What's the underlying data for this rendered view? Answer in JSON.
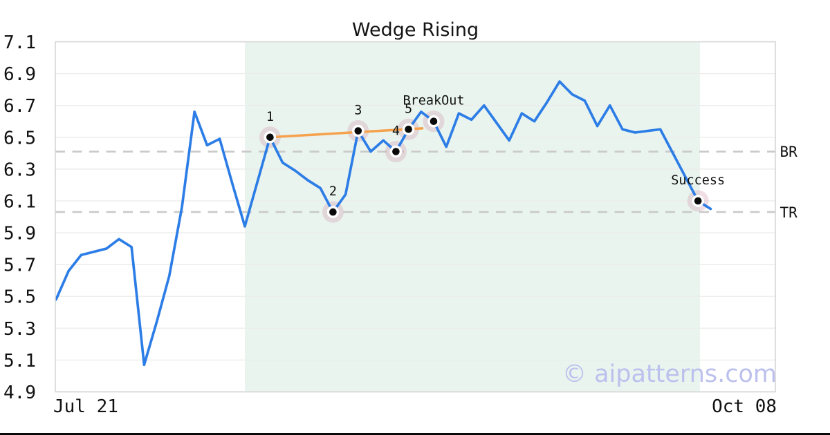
{
  "title": "Wedge Rising",
  "watermark": "© aipatterns.com",
  "chart_data": {
    "type": "line",
    "title": "Wedge Rising",
    "x_ticks": [
      "Jul 21",
      "Oct 08"
    ],
    "y_ticks": [
      "7.1",
      "6.9",
      "6.7",
      "6.5",
      "6.3",
      "6.1",
      "5.9",
      "5.7",
      "5.5",
      "5.3",
      "5.1",
      "4.9"
    ],
    "ylim": [
      4.9,
      7.1
    ],
    "grid": "horizontal",
    "legend": "none",
    "series": [
      {
        "name": "price",
        "values": [
          5.48,
          5.66,
          5.76,
          5.78,
          5.8,
          5.86,
          5.81,
          5.07,
          5.34,
          5.63,
          6.06,
          6.66,
          6.45,
          6.49,
          6.21,
          5.94,
          6.22,
          6.5,
          6.34,
          6.29,
          6.23,
          6.18,
          6.03,
          6.14,
          6.54,
          6.41,
          6.48,
          6.41,
          6.55,
          6.66,
          6.6,
          6.44,
          6.65,
          6.61,
          6.7,
          6.59,
          6.48,
          6.65,
          6.6,
          6.72,
          6.85,
          6.77,
          6.73,
          6.57,
          6.7,
          6.55,
          6.53,
          6.54,
          6.55,
          6.4,
          6.25,
          6.1,
          6.05
        ]
      }
    ],
    "markers": [
      {
        "label": "1",
        "day": 17,
        "value": 6.5
      },
      {
        "label": "2",
        "day": 22,
        "value": 6.03
      },
      {
        "label": "3",
        "day": 24,
        "value": 6.54
      },
      {
        "label": "4",
        "day": 27,
        "value": 6.41
      },
      {
        "label": "5",
        "day": 28,
        "value": 6.55
      },
      {
        "label": "BreakOut",
        "day": 30,
        "value": 6.6
      },
      {
        "label": "Success",
        "day": 51,
        "value": 6.1
      }
    ],
    "levels": [
      {
        "label": "BR",
        "value": 6.41
      },
      {
        "label": "TR",
        "value": 6.03
      }
    ],
    "trendlines": [
      {
        "from_day": 17,
        "from_value": 6.5,
        "to_day": 29.1,
        "to_value": 6.556
      }
    ],
    "highlight_region": {
      "from_day": 15,
      "to_day": 51.15
    },
    "watermark": "© aipatterns.com",
    "colors": {
      "price_line": "#2d7de6",
      "trendline": "#f6a14b",
      "region": "#e9f4ef",
      "halo": "#cf93a4",
      "level_dash": "#c9c9c9",
      "grid": "#ececec",
      "border": "#d5d5d5",
      "watermark": "#bcc0ed",
      "marker_dot": "#0a0a0a",
      "marker_ring": "#ffffff",
      "text": "#111111"
    }
  }
}
